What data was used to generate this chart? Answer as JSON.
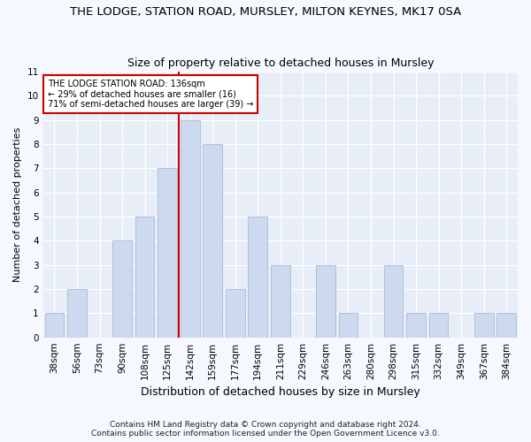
{
  "title": "THE LODGE, STATION ROAD, MURSLEY, MILTON KEYNES, MK17 0SA",
  "subtitle": "Size of property relative to detached houses in Mursley",
  "xlabel": "Distribution of detached houses by size in Mursley",
  "ylabel": "Number of detached properties",
  "categories": [
    "38sqm",
    "56sqm",
    "73sqm",
    "90sqm",
    "108sqm",
    "125sqm",
    "142sqm",
    "159sqm",
    "177sqm",
    "194sqm",
    "211sqm",
    "229sqm",
    "246sqm",
    "263sqm",
    "280sqm",
    "298sqm",
    "315sqm",
    "332sqm",
    "349sqm",
    "367sqm",
    "384sqm"
  ],
  "values": [
    1,
    2,
    0,
    4,
    5,
    7,
    9,
    8,
    2,
    5,
    3,
    0,
    3,
    1,
    0,
    3,
    1,
    1,
    0,
    1,
    1
  ],
  "bar_color": "#ccd9ee",
  "bar_edge_color": "#aabbd4",
  "highlight_color": "#cc0000",
  "annotation_line1": "THE LODGE STATION ROAD: 136sqm",
  "annotation_line2": "← 29% of detached houses are smaller (16)",
  "annotation_line3": "71% of semi-detached houses are larger (39) →",
  "annotation_box_color": "#ffffff",
  "annotation_box_edge": "#cc0000",
  "ylim": [
    0,
    11
  ],
  "yticks": [
    0,
    1,
    2,
    3,
    4,
    5,
    6,
    7,
    8,
    9,
    10,
    11
  ],
  "footer_line1": "Contains HM Land Registry data © Crown copyright and database right 2024.",
  "footer_line2": "Contains public sector information licensed under the Open Government Licence v3.0.",
  "plot_bg_color": "#e8eef8",
  "fig_bg_color": "#f5f8ff",
  "grid_color": "#ffffff",
  "title_fontsize": 9.5,
  "subtitle_fontsize": 9,
  "ylabel_fontsize": 8,
  "xlabel_fontsize": 9,
  "tick_fontsize": 7.5,
  "annotation_fontsize": 7,
  "footer_fontsize": 6.5
}
